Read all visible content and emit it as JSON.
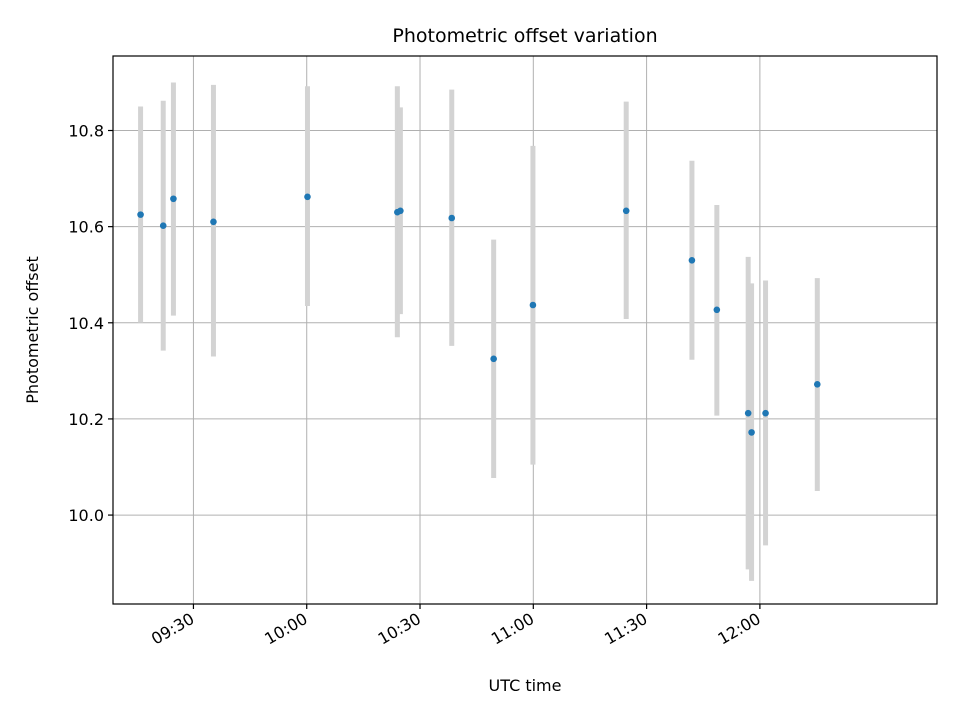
{
  "chart_data": {
    "type": "scatter",
    "title": "Photometric offset variation",
    "xlabel": "UTC time",
    "ylabel": "Photometric offset",
    "grid": true,
    "legend": "none",
    "x_axis": {
      "kind": "time",
      "range": [
        "09:08:42",
        "12:46:54"
      ],
      "ticks": [
        "09:30",
        "10:00",
        "10:30",
        "11:00",
        "11:30",
        "12:00"
      ]
    },
    "y_axis": {
      "range": [
        9.815,
        10.955
      ],
      "ticks": [
        10.0,
        10.2,
        10.4,
        10.6,
        10.8
      ],
      "tick_labels": [
        "10.0",
        "10.2",
        "10.4",
        "10.6",
        "10.8"
      ]
    },
    "colors": {
      "point": "#1f77b4",
      "errorbar": "#d3d3d3",
      "grid": "#b0b0b0"
    },
    "series": [
      {
        "points": [
          {
            "x": "09:16:00",
            "y": 10.625,
            "lo": 10.4,
            "hi": 10.85
          },
          {
            "x": "09:22:00",
            "y": 10.602,
            "lo": 10.342,
            "hi": 10.862
          },
          {
            "x": "09:24:42",
            "y": 10.658,
            "lo": 10.415,
            "hi": 10.9
          },
          {
            "x": "09:35:18",
            "y": 10.61,
            "lo": 10.33,
            "hi": 10.895
          },
          {
            "x": "10:00:12",
            "y": 10.662,
            "lo": 10.435,
            "hi": 10.892
          },
          {
            "x": "10:24:00",
            "y": 10.63,
            "lo": 10.37,
            "hi": 10.892
          },
          {
            "x": "10:24:48",
            "y": 10.633,
            "lo": 10.418,
            "hi": 10.848
          },
          {
            "x": "10:38:24",
            "y": 10.618,
            "lo": 10.352,
            "hi": 10.885
          },
          {
            "x": "10:49:30",
            "y": 10.325,
            "lo": 10.077,
            "hi": 10.573
          },
          {
            "x": "10:59:54",
            "y": 10.437,
            "lo": 10.105,
            "hi": 10.768
          },
          {
            "x": "11:24:36",
            "y": 10.633,
            "lo": 10.408,
            "hi": 10.86
          },
          {
            "x": "11:42:00",
            "y": 10.53,
            "lo": 10.323,
            "hi": 10.737
          },
          {
            "x": "11:48:36",
            "y": 10.427,
            "lo": 10.207,
            "hi": 10.645
          },
          {
            "x": "11:56:54",
            "y": 10.212,
            "lo": 9.887,
            "hi": 10.537
          },
          {
            "x": "11:57:48",
            "y": 10.172,
            "lo": 9.863,
            "hi": 10.482
          },
          {
            "x": "12:01:30",
            "y": 10.212,
            "lo": 9.937,
            "hi": 10.488
          },
          {
            "x": "12:15:12",
            "y": 10.272,
            "lo": 10.05,
            "hi": 10.493
          }
        ]
      }
    ]
  }
}
